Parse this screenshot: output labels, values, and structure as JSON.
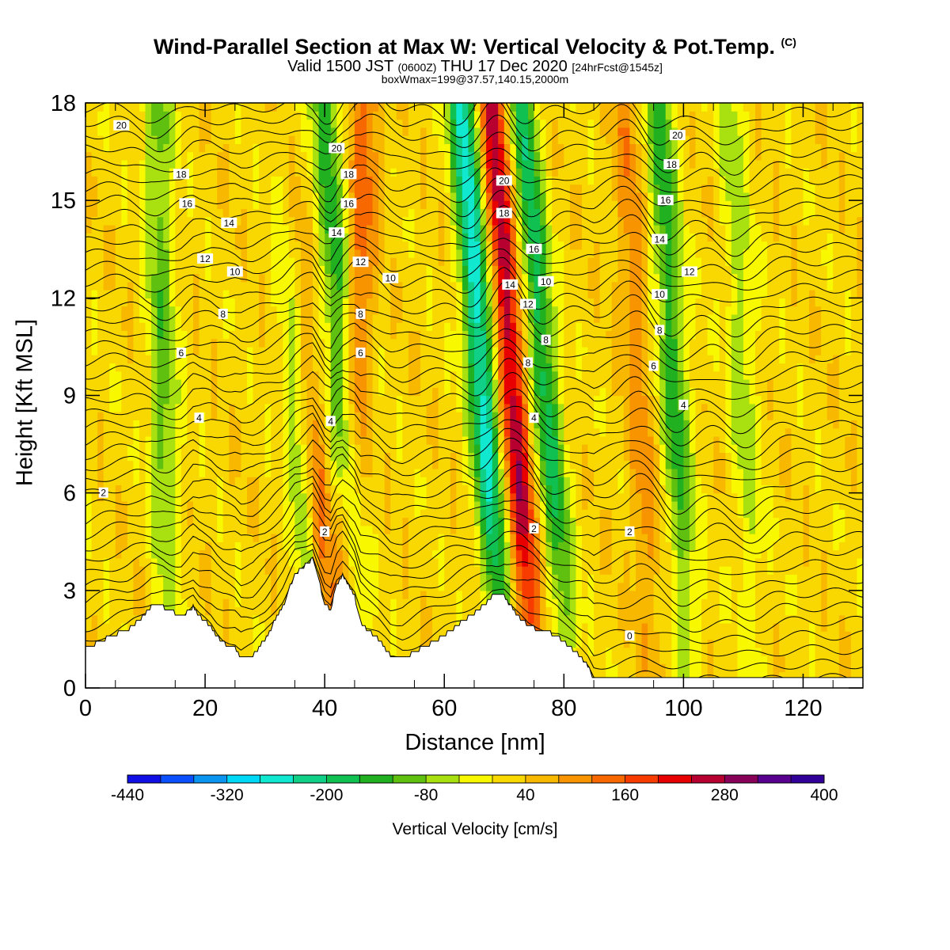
{
  "chart_data": {
    "type": "heatmap",
    "title": "Wind-Parallel Section at Max W: Vertical Velocity & Pot.Temp.",
    "title_mark": "(C)",
    "subtitle_main": "Valid 1500 JST",
    "subtitle_utc": "(0600Z)",
    "subtitle_date": "THU 17 Dec 2020",
    "subtitle_fcst": "[24hrFcst@1545z]",
    "subtitle2": "boxWmax=199@37.57,140.15,2000m",
    "xlabel": "Distance [nm]",
    "ylabel": "Height [Kft MSL]",
    "xlim": [
      0,
      130
    ],
    "ylim": [
      0,
      18
    ],
    "x_ticks": [
      "0",
      "20",
      "40",
      "60",
      "80",
      "100",
      "120"
    ],
    "y_ticks": [
      "0",
      "3",
      "6",
      "9",
      "12",
      "15",
      "18"
    ],
    "colorbar": {
      "label": "Vertical Velocity [cm/s]",
      "range": [
        -440,
        400
      ],
      "step": 40,
      "tick_labels": [
        "-440",
        "-320",
        "-200",
        "-80",
        "40",
        "160",
        "280",
        "400"
      ],
      "colors": [
        "#1010e6",
        "#0a50ff",
        "#0a96f0",
        "#00d8f8",
        "#10e8d0",
        "#10d088",
        "#10c050",
        "#20b020",
        "#60c010",
        "#a8e010",
        "#f8f800",
        "#f8d800",
        "#f8b800",
        "#f89400",
        "#f86800",
        "#f83c00",
        "#e80000",
        "#b80030",
        "#880058",
        "#580090",
        "#300098"
      ]
    },
    "updrafts": [
      {
        "x_bottom": 41,
        "x_top": 33,
        "max_cms": 200
      },
      {
        "x_bottom": 43,
        "x_top": 47,
        "max_cms": 120
      },
      {
        "x_bottom": 75,
        "x_top": 68,
        "max_cms": 240
      },
      {
        "x_bottom": 95,
        "x_top": 90,
        "max_cms": 80
      }
    ],
    "downdrafts": [
      {
        "x_bottom": 39,
        "x_top": 33,
        "min_cms": -200
      },
      {
        "x_bottom": 46,
        "x_top": 40,
        "min_cms": -160
      },
      {
        "x_bottom": 70,
        "x_top": 63,
        "min_cms": -280
      },
      {
        "x_bottom": 81,
        "x_top": 73,
        "min_cms": -200
      },
      {
        "x_bottom": 101,
        "x_top": 96,
        "min_cms": -160
      },
      {
        "x_bottom": 14,
        "x_top": 12,
        "min_cms": -120
      },
      {
        "x_bottom": 112,
        "x_top": 108,
        "min_cms": -80
      }
    ],
    "terrain": {
      "x": [
        0,
        3,
        7,
        9,
        11,
        13,
        16,
        18,
        19,
        21,
        22,
        23,
        25,
        26,
        28,
        30,
        33,
        35,
        37,
        38,
        39,
        40,
        41,
        42,
        43,
        45,
        46,
        49,
        51,
        53,
        56,
        59,
        62,
        65,
        68,
        70,
        72,
        74,
        76,
        79,
        82,
        84,
        85,
        86,
        89,
        95,
        100,
        110,
        120,
        130
      ],
      "height": [
        1.2,
        1.5,
        1.8,
        2.1,
        2.5,
        2.5,
        2.2,
        2.5,
        2.2,
        1.9,
        1.6,
        1.4,
        1.2,
        0.9,
        1.0,
        1.5,
        2.5,
        3.5,
        3.8,
        4.0,
        3.3,
        2.6,
        2.4,
        3.2,
        3.5,
        2.8,
        2.0,
        1.5,
        1.0,
        0.9,
        1.2,
        1.5,
        1.9,
        2.3,
        2.8,
        2.8,
        2.3,
        1.9,
        1.8,
        1.6,
        1.1,
        0.7,
        0.3,
        0.3,
        0.3,
        0.3,
        0.3,
        0.3,
        0.3,
        0.3
      ]
    },
    "pot_temp_contour_labels": [
      {
        "text": "20",
        "x": 6,
        "y": 17.3
      },
      {
        "text": "18",
        "x": 16,
        "y": 15.8
      },
      {
        "text": "16",
        "x": 17,
        "y": 14.9
      },
      {
        "text": "14",
        "x": 24,
        "y": 14.3
      },
      {
        "text": "12",
        "x": 20,
        "y": 13.2
      },
      {
        "text": "10",
        "x": 25,
        "y": 12.8
      },
      {
        "text": "8",
        "x": 23,
        "y": 11.5
      },
      {
        "text": "6",
        "x": 16,
        "y": 10.3
      },
      {
        "text": "4",
        "x": 19,
        "y": 8.3
      },
      {
        "text": "2",
        "x": 3,
        "y": 6.0
      },
      {
        "text": "20",
        "x": 42,
        "y": 16.6
      },
      {
        "text": "18",
        "x": 44,
        "y": 15.8
      },
      {
        "text": "16",
        "x": 44,
        "y": 14.9
      },
      {
        "text": "14",
        "x": 42,
        "y": 14.0
      },
      {
        "text": "12",
        "x": 46,
        "y": 13.1
      },
      {
        "text": "10",
        "x": 51,
        "y": 12.6
      },
      {
        "text": "8",
        "x": 46,
        "y": 11.5
      },
      {
        "text": "6",
        "x": 46,
        "y": 10.3
      },
      {
        "text": "4",
        "x": 41,
        "y": 8.2
      },
      {
        "text": "2",
        "x": 40,
        "y": 4.8
      },
      {
        "text": "20",
        "x": 70,
        "y": 15.6
      },
      {
        "text": "18",
        "x": 70,
        "y": 14.6
      },
      {
        "text": "16",
        "x": 75,
        "y": 13.5
      },
      {
        "text": "14",
        "x": 71,
        "y": 12.4
      },
      {
        "text": "10",
        "x": 77,
        "y": 12.5
      },
      {
        "text": "12",
        "x": 74,
        "y": 11.8
      },
      {
        "text": "8",
        "x": 77,
        "y": 10.7
      },
      {
        "text": "8",
        "x": 74,
        "y": 10.0
      },
      {
        "text": "4",
        "x": 75,
        "y": 8.3
      },
      {
        "text": "2",
        "x": 75,
        "y": 4.9
      },
      {
        "text": "20",
        "x": 99,
        "y": 17.0
      },
      {
        "text": "18",
        "x": 98,
        "y": 16.1
      },
      {
        "text": "16",
        "x": 97,
        "y": 15.0
      },
      {
        "text": "14",
        "x": 96,
        "y": 13.8
      },
      {
        "text": "12",
        "x": 101,
        "y": 12.8
      },
      {
        "text": "10",
        "x": 96,
        "y": 12.1
      },
      {
        "text": "8",
        "x": 96,
        "y": 11.0
      },
      {
        "text": "6",
        "x": 95,
        "y": 9.9
      },
      {
        "text": "4",
        "x": 100,
        "y": 8.7
      },
      {
        "text": "2",
        "x": 91,
        "y": 4.8
      },
      {
        "text": "0",
        "x": 91,
        "y": 1.6
      }
    ],
    "grid": false
  }
}
